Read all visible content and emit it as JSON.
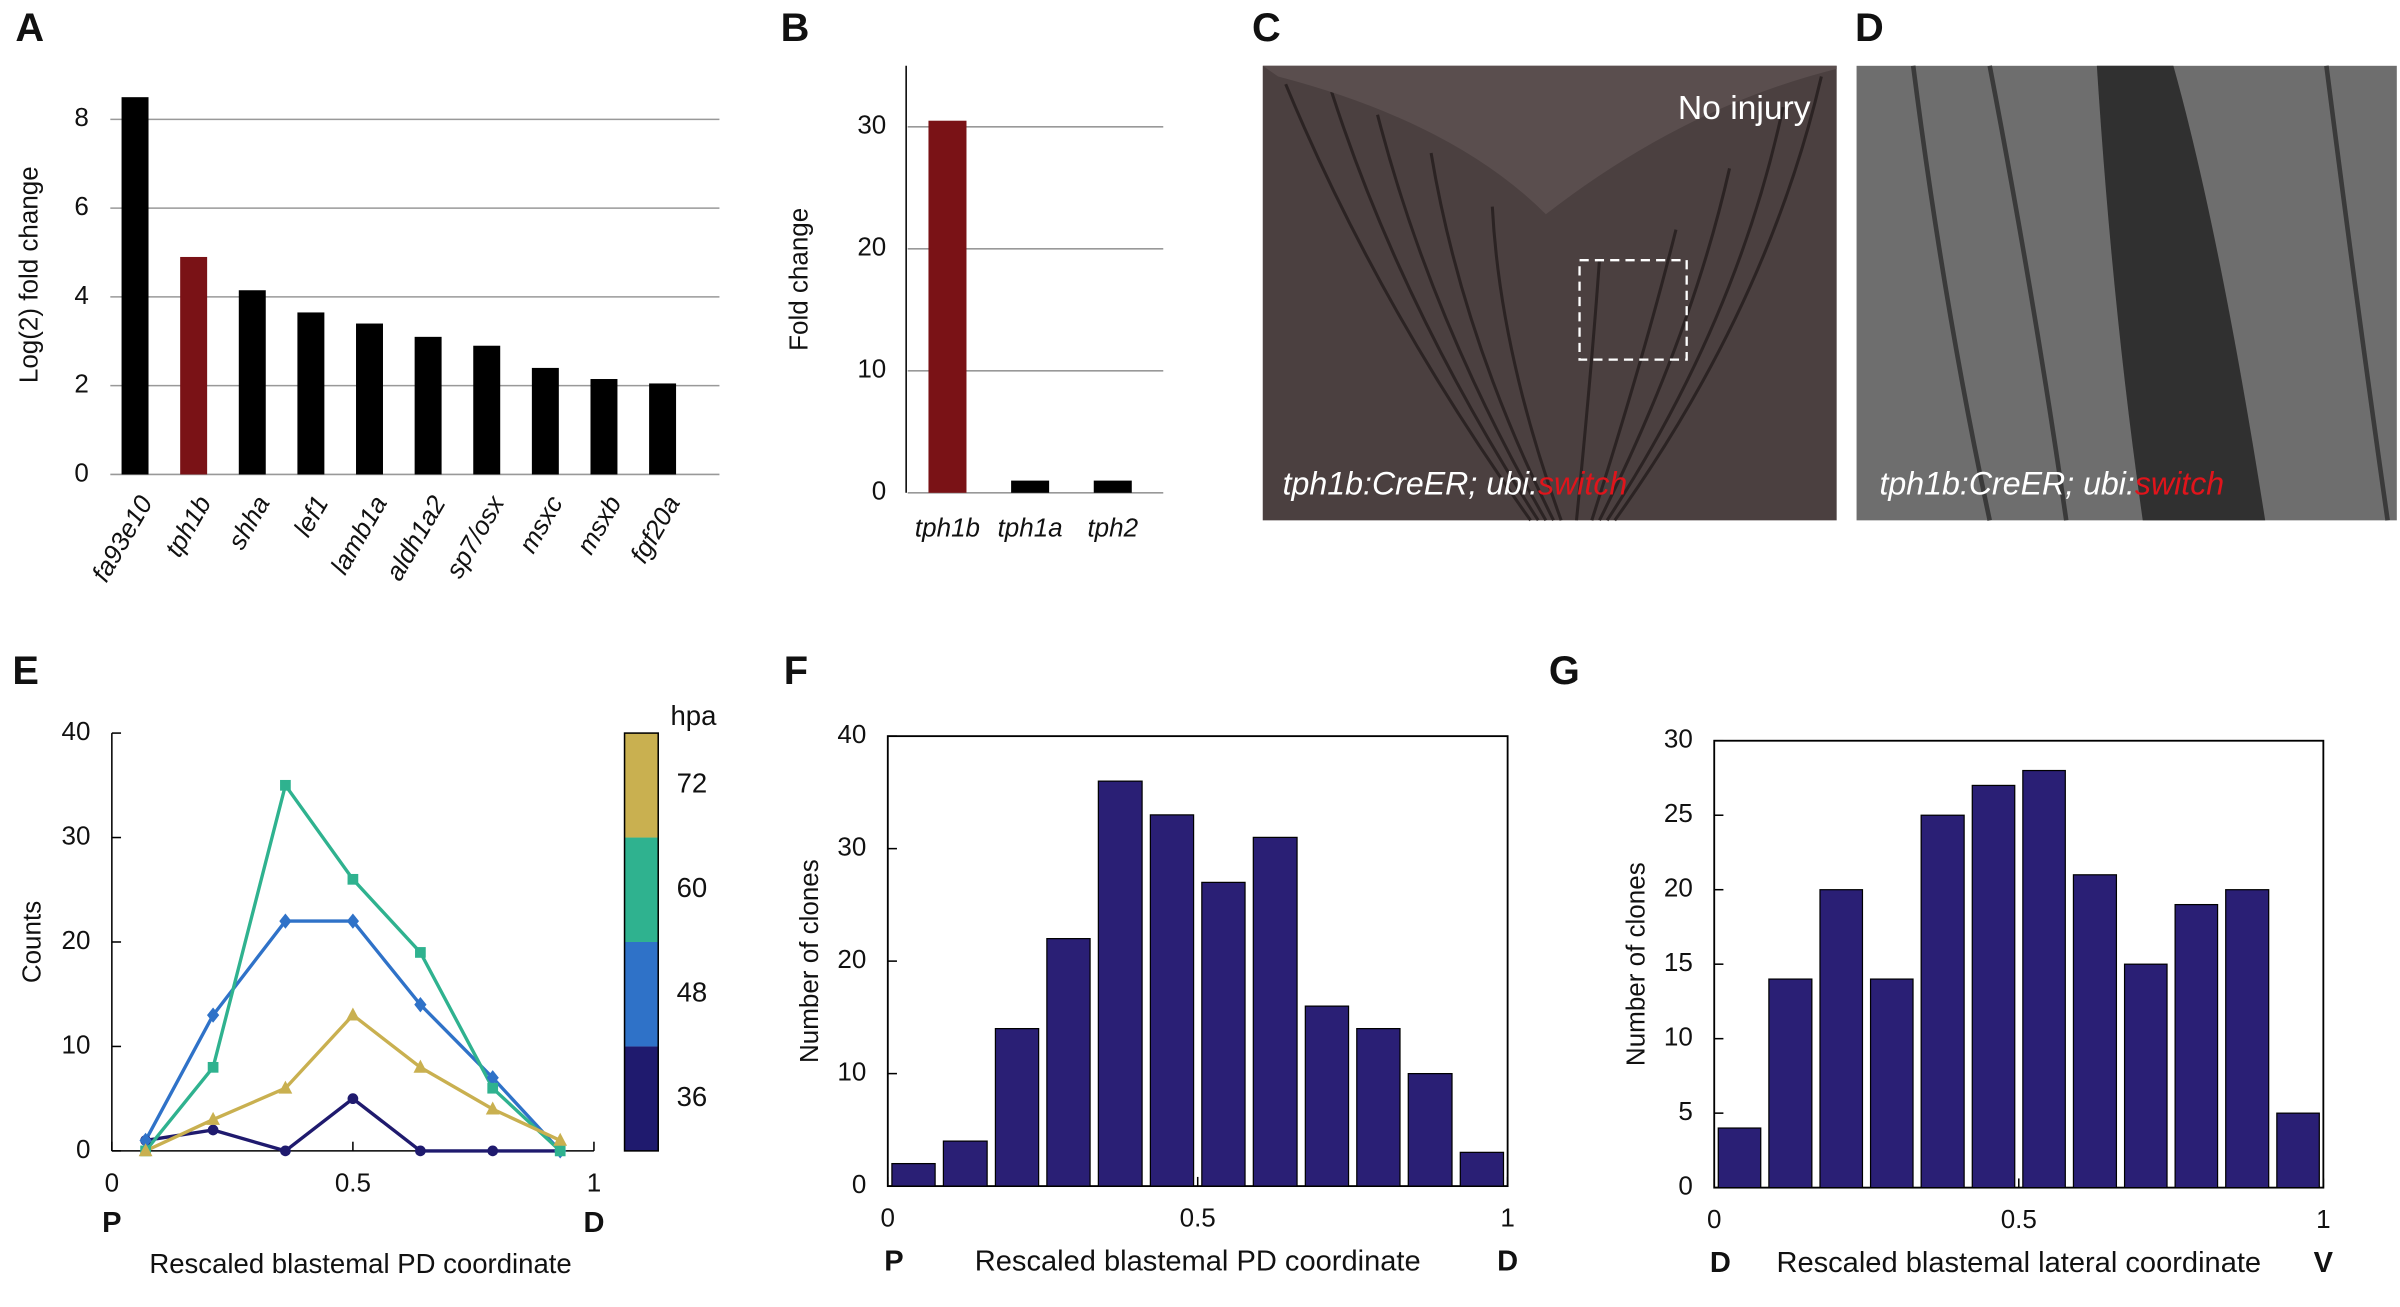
{
  "chart_data": [
    {
      "panel": "A",
      "type": "bar",
      "ylabel": "Log(2) fold change",
      "categories": [
        "fa93e10",
        "tph1b",
        "shha",
        "lef1",
        "lamb1a",
        "aldh1a2",
        "sp7/osx",
        "msxc",
        "msxb",
        "fgf20a"
      ],
      "values": [
        8.5,
        4.9,
        4.15,
        3.65,
        3.4,
        3.1,
        2.9,
        2.4,
        2.15,
        2.05
      ],
      "colors": [
        "#000000",
        "#7a1216",
        "#000000",
        "#000000",
        "#000000",
        "#000000",
        "#000000",
        "#000000",
        "#000000",
        "#000000"
      ],
      "ylim": [
        0,
        9
      ],
      "yticks": [
        0,
        2,
        4,
        6,
        8
      ],
      "grid": true
    },
    {
      "panel": "B",
      "type": "bar",
      "ylabel": "Fold change",
      "categories": [
        "tph1b",
        "tph1a",
        "tph2"
      ],
      "values": [
        30.5,
        1,
        1
      ],
      "colors": [
        "#7a1216",
        "#000000",
        "#000000"
      ],
      "ylim": [
        0,
        35
      ],
      "yticks": [
        0,
        10,
        20,
        30
      ],
      "grid": true
    },
    {
      "panel": "E",
      "type": "line",
      "ylabel": "Counts",
      "xlabel": "Rescaled blastemal PD coordinate",
      "xlabel_left": "P",
      "xlabel_right": "D",
      "legend_title": "hpa",
      "x": [
        0.07,
        0.21,
        0.36,
        0.5,
        0.64,
        0.79,
        0.93
      ],
      "series": [
        {
          "name": "36",
          "color": "#1f1a6e",
          "marker": "circle",
          "values": [
            1,
            2,
            0,
            5,
            0,
            0,
            0
          ]
        },
        {
          "name": "48",
          "color": "#2f72c8",
          "marker": "diamond",
          "values": [
            1,
            13,
            22,
            22,
            14,
            7,
            0
          ]
        },
        {
          "name": "60",
          "color": "#2fb28f",
          "marker": "square",
          "values": [
            0,
            8,
            35,
            26,
            19,
            6,
            0
          ]
        },
        {
          "name": "72",
          "color": "#c9b050",
          "marker": "triangle",
          "values": [
            0,
            3,
            6,
            13,
            8,
            4,
            1
          ]
        }
      ],
      "xlim": [
        0,
        1
      ],
      "xticks": [
        0,
        0.5,
        1
      ],
      "ylim": [
        0,
        40
      ],
      "yticks": [
        0,
        10,
        20,
        30,
        40
      ]
    },
    {
      "panel": "F",
      "type": "histogram",
      "ylabel": "Number of clones",
      "xlabel": "Rescaled blastemal PD coordinate",
      "xlabel_left": "P",
      "xlabel_right": "D",
      "color": "#2a1f75",
      "bins": [
        0,
        0.083,
        0.167,
        0.25,
        0.333,
        0.417,
        0.5,
        0.583,
        0.667,
        0.75,
        0.833,
        0.917,
        1
      ],
      "values": [
        2,
        4,
        14,
        22,
        36,
        33,
        27,
        31,
        16,
        14,
        10,
        3
      ],
      "xlim": [
        0,
        1
      ],
      "xticks": [
        0,
        0.5,
        1
      ],
      "ylim": [
        0,
        40
      ],
      "yticks": [
        0,
        10,
        20,
        30,
        40
      ]
    },
    {
      "panel": "G",
      "type": "histogram",
      "ylabel": "Number of clones",
      "xlabel": "Rescaled blastemal lateral coordinate",
      "xlabel_left": "D",
      "xlabel_right": "V",
      "color": "#2a1f75",
      "bins": [
        0,
        0.083,
        0.167,
        0.25,
        0.333,
        0.417,
        0.5,
        0.583,
        0.667,
        0.75,
        0.833,
        0.917,
        1
      ],
      "values": [
        4,
        14,
        20,
        14,
        25,
        27,
        28,
        21,
        15,
        19,
        20,
        5
      ],
      "xlim": [
        0,
        1
      ],
      "xticks": [
        0,
        0.5,
        1
      ],
      "ylim": [
        0,
        30
      ],
      "yticks": [
        0,
        5,
        10,
        15,
        20,
        25,
        30
      ]
    }
  ],
  "images": [
    {
      "panel": "C",
      "caption": "No injury",
      "label": "tph1b:CreER; ubi:",
      "label_highlight": "switch"
    },
    {
      "panel": "D",
      "label": "tph1b:CreER; ubi:",
      "label_highlight": "switch"
    }
  ]
}
